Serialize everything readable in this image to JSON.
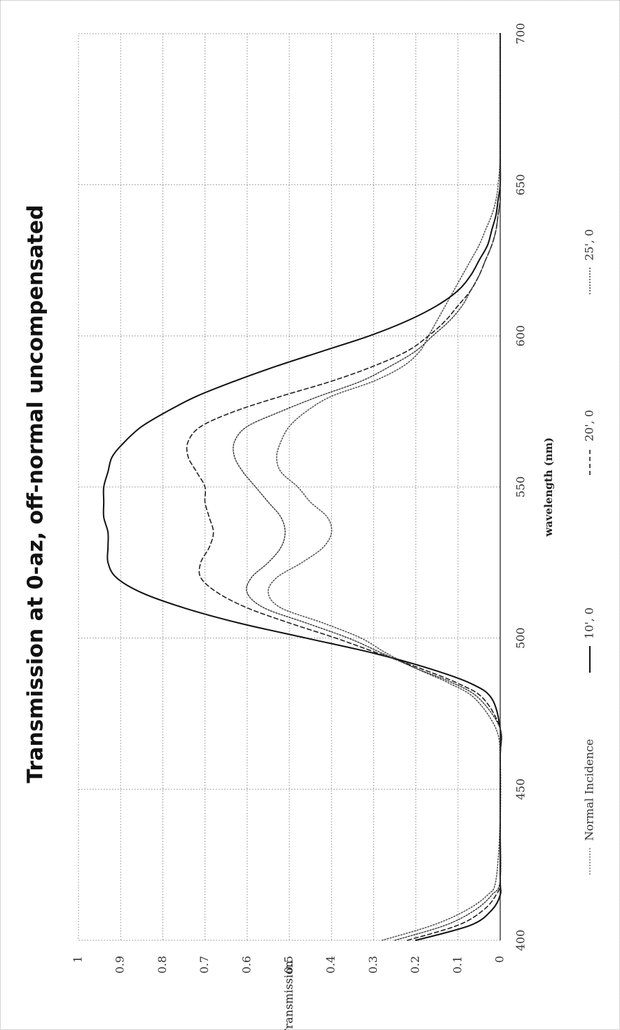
{
  "chart_data": {
    "type": "line",
    "title": "Transmission at 0-az, off-normal uncompensated",
    "xlabel": "wavelength (nm)",
    "ylabel": "Transmission",
    "xlim": [
      400,
      700
    ],
    "ylim": [
      0,
      1
    ],
    "x_ticks": [
      "400",
      "450",
      "500",
      "550",
      "600",
      "650",
      "700"
    ],
    "y_ticks": [
      "0",
      "0.1",
      "0.2",
      "0.3",
      "0.4",
      "0.5",
      "0.6",
      "0.7",
      "0.8",
      "0.9",
      "1"
    ],
    "grid": true,
    "legend_position": "bottom",
    "orientation": "rotated 90° counter-clockwise",
    "series": [
      {
        "name": "Normal Incidence",
        "style": "dotted",
        "color": "#555555",
        "x": [
          400,
          405,
          410,
          415,
          420,
          440,
          460,
          470,
          480,
          485,
          490,
          495,
          500,
          505,
          510,
          515,
          520,
          525,
          530,
          535,
          540,
          545,
          550,
          555,
          560,
          565,
          570,
          575,
          580,
          585,
          590,
          595,
          600,
          605,
          610,
          615,
          620,
          625,
          630,
          635,
          640,
          645,
          650,
          660,
          680,
          700
        ],
        "y": [
          0.28,
          0.16,
          0.08,
          0.03,
          0.01,
          0.0,
          0.0,
          0.01,
          0.06,
          0.12,
          0.2,
          0.27,
          0.33,
          0.42,
          0.52,
          0.55,
          0.53,
          0.47,
          0.42,
          0.4,
          0.41,
          0.45,
          0.48,
          0.52,
          0.53,
          0.52,
          0.5,
          0.46,
          0.4,
          0.3,
          0.23,
          0.19,
          0.17,
          0.15,
          0.13,
          0.11,
          0.09,
          0.07,
          0.05,
          0.035,
          0.02,
          0.01,
          0.005,
          0.0,
          0.0,
          0.0
        ]
      },
      {
        "name": "10', 0",
        "style": "solid",
        "color": "#111111",
        "x": [
          400,
          405,
          410,
          415,
          420,
          440,
          460,
          470,
          480,
          485,
          490,
          495,
          500,
          505,
          510,
          515,
          520,
          525,
          530,
          535,
          540,
          545,
          550,
          555,
          560,
          565,
          570,
          575,
          580,
          585,
          590,
          595,
          600,
          605,
          610,
          615,
          620,
          625,
          630,
          635,
          640,
          645,
          650,
          660,
          680,
          700
        ],
        "y": [
          0.2,
          0.07,
          0.02,
          0.0,
          0.0,
          0.0,
          0.0,
          0.0,
          0.02,
          0.07,
          0.17,
          0.3,
          0.46,
          0.62,
          0.75,
          0.85,
          0.91,
          0.93,
          0.93,
          0.93,
          0.94,
          0.94,
          0.94,
          0.93,
          0.92,
          0.89,
          0.85,
          0.79,
          0.72,
          0.63,
          0.53,
          0.42,
          0.31,
          0.22,
          0.15,
          0.1,
          0.07,
          0.05,
          0.03,
          0.02,
          0.01,
          0.005,
          0.0,
          0.0,
          0.0,
          0.0
        ]
      },
      {
        "name": "20', 0",
        "style": "dashed",
        "color": "#222222",
        "x": [
          400,
          405,
          410,
          415,
          420,
          440,
          460,
          470,
          480,
          485,
          490,
          495,
          500,
          505,
          510,
          515,
          520,
          525,
          530,
          535,
          540,
          545,
          550,
          555,
          560,
          565,
          570,
          575,
          580,
          585,
          590,
          595,
          600,
          605,
          610,
          615,
          620,
          625,
          630,
          635,
          640,
          645,
          650,
          660,
          680,
          700
        ],
        "y": [
          0.22,
          0.1,
          0.04,
          0.01,
          0.0,
          0.0,
          0.0,
          0.0,
          0.04,
          0.1,
          0.19,
          0.29,
          0.39,
          0.5,
          0.6,
          0.67,
          0.71,
          0.71,
          0.69,
          0.68,
          0.69,
          0.7,
          0.7,
          0.72,
          0.74,
          0.74,
          0.71,
          0.63,
          0.52,
          0.4,
          0.3,
          0.22,
          0.17,
          0.13,
          0.1,
          0.07,
          0.05,
          0.035,
          0.02,
          0.01,
          0.005,
          0.0,
          0.0,
          0.0,
          0.0,
          0.0
        ]
      },
      {
        "name": "25', 0",
        "style": "dense-dotted",
        "color": "#333333",
        "x": [
          400,
          405,
          410,
          415,
          420,
          440,
          460,
          470,
          480,
          485,
          490,
          495,
          500,
          505,
          510,
          515,
          520,
          525,
          530,
          535,
          540,
          545,
          550,
          555,
          560,
          565,
          570,
          575,
          580,
          585,
          590,
          595,
          600,
          605,
          610,
          615,
          620,
          625,
          630,
          635,
          640,
          645,
          650,
          660,
          680,
          700
        ],
        "y": [
          0.25,
          0.13,
          0.06,
          0.02,
          0.0,
          0.0,
          0.0,
          0.0,
          0.05,
          0.11,
          0.2,
          0.28,
          0.36,
          0.46,
          0.56,
          0.6,
          0.59,
          0.55,
          0.52,
          0.51,
          0.52,
          0.55,
          0.58,
          0.61,
          0.63,
          0.63,
          0.6,
          0.52,
          0.43,
          0.33,
          0.26,
          0.2,
          0.16,
          0.12,
          0.09,
          0.07,
          0.05,
          0.035,
          0.02,
          0.01,
          0.005,
          0.0,
          0.0,
          0.0,
          0.0,
          0.0
        ]
      }
    ]
  }
}
